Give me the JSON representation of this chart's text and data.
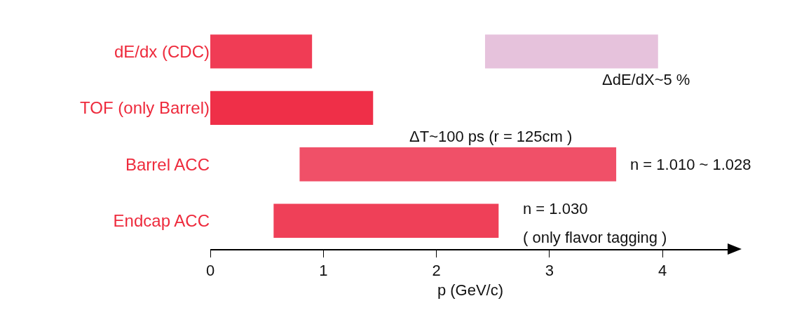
{
  "chart_data": {
    "type": "bar",
    "orientation": "horizontal",
    "categories": [
      "dE/dx (CDC)",
      "TOF (only Barrel)",
      "Barrel ACC",
      "Endcap ACC"
    ],
    "series": [
      {
        "base": [
          0,
          0,
          0.79,
          0.56
        ],
        "values": [
          0.9,
          1.44,
          2.8,
          1.99
        ],
        "colors": [
          "#f03c55",
          "#ef2f48",
          "#f05068",
          "#ef4058"
        ]
      },
      {
        "base": [
          2.43,
          null,
          null,
          null
        ],
        "values": [
          1.53,
          null,
          null,
          null
        ],
        "colors": [
          "#e6c2dc",
          null,
          null,
          null
        ]
      }
    ],
    "xlabel": "p (GeV/c)",
    "xlim": [
      0,
      4.6
    ],
    "xticks": [
      0,
      1,
      2,
      3,
      4
    ],
    "grid": false,
    "annotations": [
      "ΔdE/dX~5 %",
      "ΔT~100 ps (r = 125cm )",
      "n = 1.010 ~ 1.028",
      "n = 1.030",
      "( only flavor tagging )"
    ]
  }
}
